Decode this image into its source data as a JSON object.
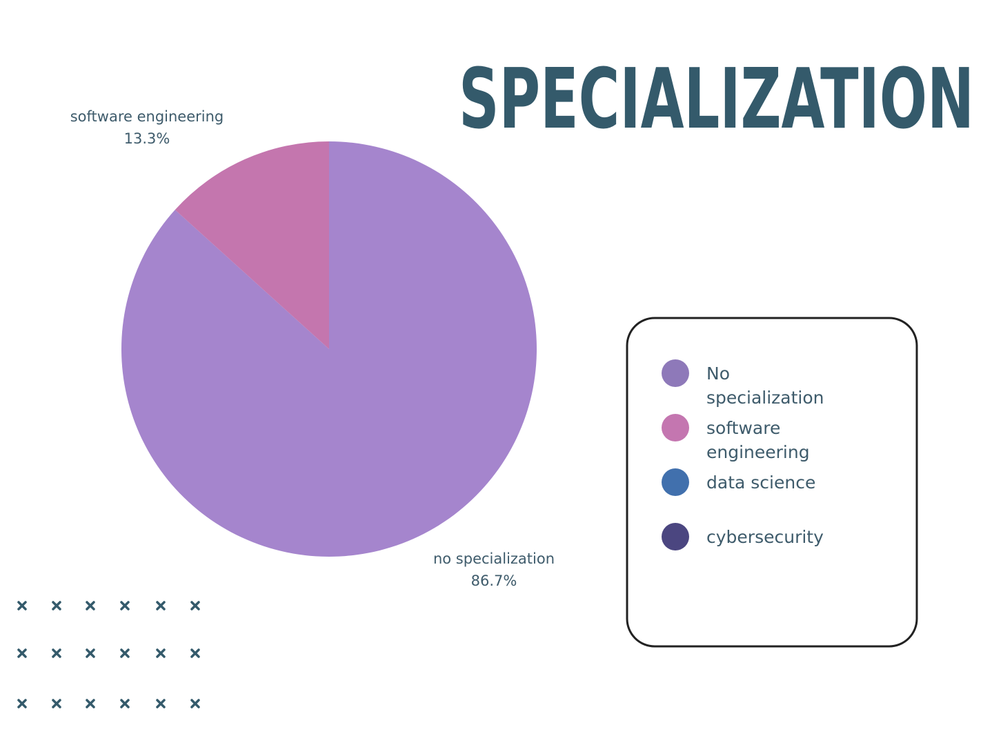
{
  "chart_data": {
    "type": "pie",
    "title": "SPECIALIZATION",
    "labels": [
      "no specialization",
      "software engineering"
    ],
    "values": [
      86.7,
      13.3
    ],
    "value_labels": [
      "86.7%",
      "13.3%"
    ],
    "colors": [
      "#a585cd",
      "#c476ae"
    ],
    "legend": [
      {
        "name": "No specialization",
        "color": "#8e79b9"
      },
      {
        "name": "software engineering",
        "color": "#c476b0"
      },
      {
        "name": "data science",
        "color": "#4170ad"
      },
      {
        "name": "cybersecurity",
        "color": "#4b4680"
      }
    ]
  }
}
